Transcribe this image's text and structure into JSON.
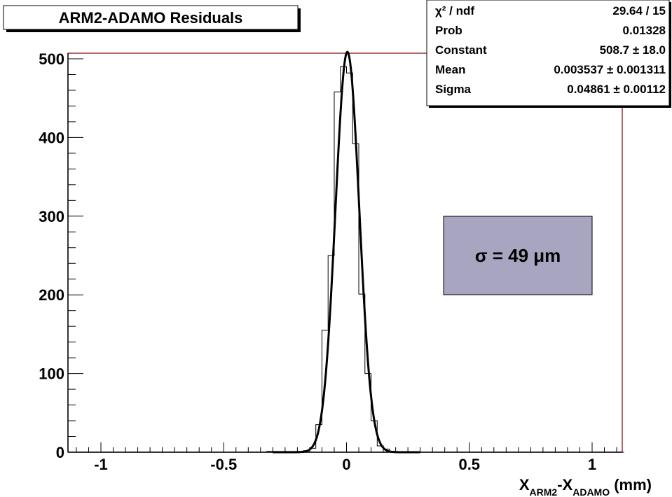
{
  "chart_data": {
    "type": "histogram",
    "title": "ARM2-ADAMO Residuals",
    "xlabel": {
      "main": "X",
      "sub1": "ARM2",
      "mid": "-X",
      "sub2": "ADAMO",
      "tail": " (mm)"
    },
    "ylabel": "",
    "xlim": [
      -1.1,
      1.13
    ],
    "ylim": [
      0,
      505
    ],
    "x_ticks": [
      {
        "value": -1,
        "label": "-1"
      },
      {
        "value": -0.5,
        "label": "-0.5"
      },
      {
        "value": 0,
        "label": "0"
      },
      {
        "value": 0.5,
        "label": "0.5"
      },
      {
        "value": 1,
        "label": "1"
      }
    ],
    "y_ticks": [
      {
        "value": 0,
        "label": "0"
      },
      {
        "value": 100,
        "label": "100"
      },
      {
        "value": 200,
        "label": "200"
      },
      {
        "value": 300,
        "label": "300"
      },
      {
        "value": 400,
        "label": "400"
      },
      {
        "value": 500,
        "label": "500"
      }
    ],
    "bins": [
      {
        "x0": -1.1,
        "x1": -0.325,
        "y": 0
      },
      {
        "x0": -0.325,
        "x1": -0.175,
        "y": 1
      },
      {
        "x0": -0.175,
        "x1": -0.15,
        "y": 2
      },
      {
        "x0": -0.15,
        "x1": -0.125,
        "y": 5
      },
      {
        "x0": -0.125,
        "x1": -0.1,
        "y": 35
      },
      {
        "x0": -0.1,
        "x1": -0.075,
        "y": 155
      },
      {
        "x0": -0.075,
        "x1": -0.05,
        "y": 250
      },
      {
        "x0": -0.05,
        "x1": -0.025,
        "y": 458
      },
      {
        "x0": -0.025,
        "x1": 0,
        "y": 490
      },
      {
        "x0": 0,
        "x1": 0.025,
        "y": 482
      },
      {
        "x0": 0.025,
        "x1": 0.05,
        "y": 392
      },
      {
        "x0": 0.05,
        "x1": 0.075,
        "y": 201
      },
      {
        "x0": 0.075,
        "x1": 0.1,
        "y": 100
      },
      {
        "x0": 0.1,
        "x1": 0.125,
        "y": 40
      },
      {
        "x0": 0.125,
        "x1": 0.15,
        "y": 8
      },
      {
        "x0": 0.15,
        "x1": 0.175,
        "y": 4
      },
      {
        "x0": 0.175,
        "x1": 0.2,
        "y": 1
      },
      {
        "x0": 0.2,
        "x1": 1.13,
        "y": 0
      }
    ],
    "fit": {
      "type": "gaussian",
      "constant": 508.7,
      "mean": 0.003537,
      "sigma": 0.04861
    },
    "stats": [
      {
        "label": "χ² / ndf",
        "value": "29.64 / 15"
      },
      {
        "label": "Prob",
        "value": "0.01328"
      },
      {
        "label": "Constant",
        "value": "508.7 ± 18.0"
      },
      {
        "label": "Mean",
        "value": "0.003537 ± 0.001311"
      },
      {
        "label": "Sigma",
        "value": "0.04861 ± 0.00112"
      }
    ],
    "annotation": "σ = 49 μm",
    "colors": {
      "frame": "#800000",
      "annotation_fill": "#a8a5c1",
      "line": "#000000"
    }
  }
}
